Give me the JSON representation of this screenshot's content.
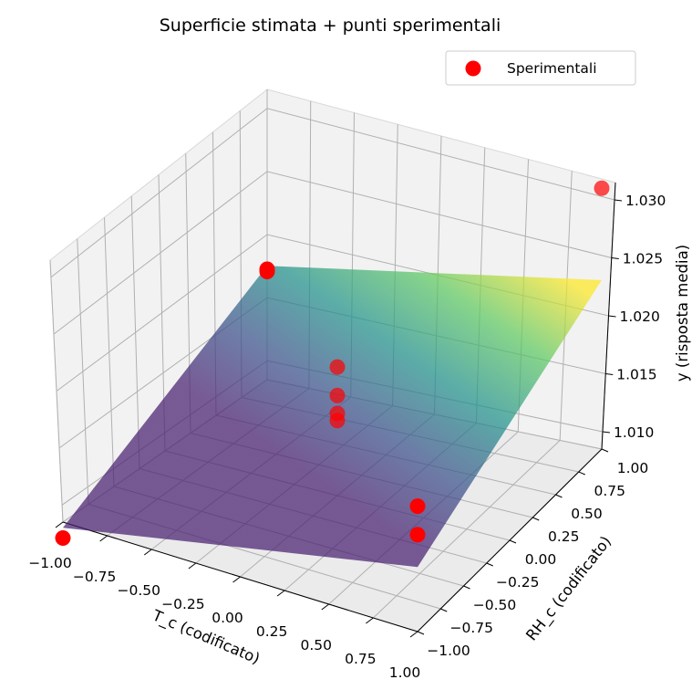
{
  "chart_data": {
    "type": "scatter",
    "title": "Superficie stimata + punti sperimentali",
    "xlabel": "T_c (codificato)",
    "ylabel": "RH_c (codificato)",
    "zlabel": "y (risposta media)",
    "x_ticks": [
      "−1.00",
      "−0.75",
      "−0.50",
      "−0.25",
      "0.00",
      "0.25",
      "0.50",
      "0.75",
      "1.00"
    ],
    "y_ticks": [
      "−1.00",
      "−0.75",
      "−0.50",
      "−0.25",
      "0.00",
      "0.25",
      "0.50",
      "0.75",
      "1.00"
    ],
    "z_ticks": [
      "1.010",
      "1.015",
      "1.020",
      "1.025",
      "1.030"
    ],
    "xlim": [
      -1.0,
      1.0
    ],
    "ylim": [
      -1.0,
      1.0
    ],
    "zlim": [
      1.0085,
      1.0315
    ],
    "grid": true,
    "legend": {
      "position": "top-right",
      "entries": [
        "Sperimentali"
      ]
    },
    "series": [
      {
        "name": "Sperimentali",
        "color": "#ff0000",
        "points": [
          {
            "x": -1,
            "y": -1,
            "z": 1.0071
          },
          {
            "x": -1,
            "y": 1,
            "z": 1.018
          },
          {
            "x": 1,
            "y": -1,
            "z": 1.0163
          },
          {
            "x": 1,
            "y": 1,
            "z": 1.0295
          },
          {
            "x": -1,
            "y": 1,
            "z": 1.0182
          },
          {
            "x": 0,
            "y": 0,
            "z": 1.0148
          },
          {
            "x": 0,
            "y": 0,
            "z": 1.0154
          },
          {
            "x": 0,
            "y": 0,
            "z": 1.0169
          },
          {
            "x": 0,
            "y": 0,
            "z": 1.0193
          },
          {
            "x": 1,
            "y": -1,
            "z": 1.0186
          }
        ]
      }
    ],
    "surface": {
      "name": "Superficie stimata",
      "colormap": "viridis",
      "corners": [
        {
          "x": -1,
          "y": -1,
          "z": 1.008
        },
        {
          "x": 1,
          "y": -1,
          "z": 1.0137
        },
        {
          "x": 1,
          "y": 1,
          "z": 1.0221
        },
        {
          "x": -1,
          "y": 1,
          "z": 1.0185
        }
      ]
    }
  }
}
